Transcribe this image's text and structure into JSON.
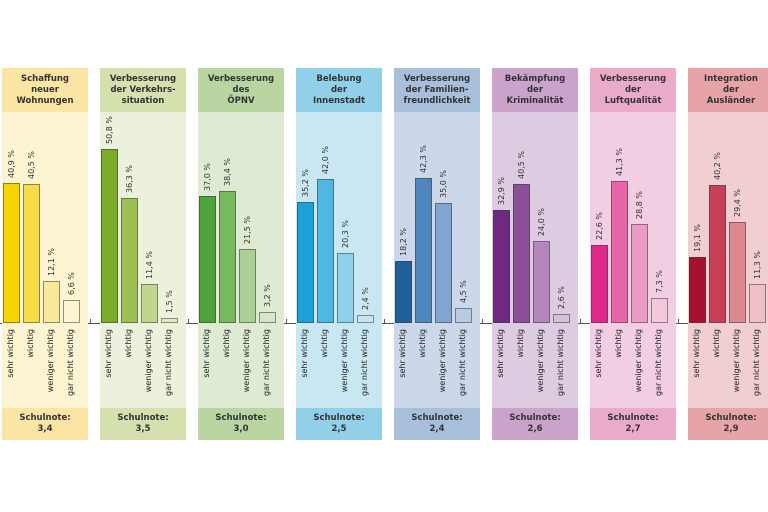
{
  "chart_data": {
    "type": "bar",
    "categories": [
      "sehr wichtig",
      "wichtig",
      "weniger wichtig",
      "gar nicht wichtig"
    ],
    "ylim": [
      0,
      55
    ],
    "grade_label": "Schulnote:",
    "panels": [
      {
        "title": "Schaffung\nneuer\nWohnungen",
        "values": [
          40.9,
          40.5,
          12.1,
          6.6
        ],
        "labels": [
          "40,9 %",
          "40,5 %",
          "12,1 %",
          "6,6 %"
        ],
        "grade": "3,4",
        "colors": {
          "header": "#fae5a4",
          "bg": "#fdf4d2",
          "bars": [
            "#f5d400",
            "#f7dc4a",
            "#f9e89a",
            "#fdf5d2"
          ]
        }
      },
      {
        "title": "Verbesserung\nder Verkehrs-\nsituation",
        "values": [
          50.8,
          36.3,
          11.4,
          1.5
        ],
        "labels": [
          "50,8 %",
          "36,3 %",
          "11,4 %",
          "1,5 %"
        ],
        "grade": "3,5",
        "colors": {
          "header": "#d4e0ae",
          "bg": "#ebf1da",
          "bars": [
            "#7bab2a",
            "#9ebf52",
            "#c1d68d",
            "#e0eac3"
          ]
        }
      },
      {
        "title": "Verbesserung\ndes\nÖPNV",
        "values": [
          37.0,
          38.4,
          21.5,
          3.2
        ],
        "labels": [
          "37,0 %",
          "38,4 %",
          "21,5 %",
          "3,2 %"
        ],
        "grade": "3,0",
        "colors": {
          "header": "#b9d5a2",
          "bg": "#deead2",
          "bars": [
            "#4ea33a",
            "#78b860",
            "#a9cf92",
            "#d4e6c8"
          ]
        }
      },
      {
        "title": "Belebung\nder\nInnenstadt",
        "values": [
          35.2,
          42.0,
          20.3,
          2.4
        ],
        "labels": [
          "35,2 %",
          "42,0 %",
          "20,3 %",
          "2,4 %"
        ],
        "grade": "2,5",
        "colors": {
          "header": "#92d0e9",
          "bg": "#c9e7f3",
          "bars": [
            "#1aa2d8",
            "#4fb8e2",
            "#8fd0ec",
            "#c4e6f4"
          ]
        }
      },
      {
        "title": "Verbesserung\nder Familien-\nfreundlichkeit",
        "values": [
          18.2,
          42.3,
          35.0,
          4.5
        ],
        "labels": [
          "18,2 %",
          "42,3 %",
          "35,0 %",
          "4,5 %"
        ],
        "grade": "2,4",
        "colors": {
          "header": "#a8bfdc",
          "bg": "#ccd8e9",
          "bars": [
            "#1f5f9a",
            "#4f86c0",
            "#7fa5d0",
            "#b8cbe2"
          ]
        }
      },
      {
        "title": "Bekämpfung\nder\nKriminalität",
        "values": [
          32.9,
          40.5,
          24.0,
          2.6
        ],
        "labels": [
          "32,9 %",
          "40,5 %",
          "24,0 %",
          "2,6 %"
        ],
        "grade": "2,6",
        "colors": {
          "header": "#c9a3c9",
          "bg": "#ddcce1",
          "bars": [
            "#6e2a80",
            "#8c4e98",
            "#b487bc",
            "#d6bfd9"
          ]
        }
      },
      {
        "title": "Verbesserung\nder\nLuftqualität",
        "values": [
          22.6,
          41.3,
          28.8,
          7.3
        ],
        "labels": [
          "22,6 %",
          "41,3 %",
          "28,8 %",
          "7,3 %"
        ],
        "grade": "2,7",
        "colors": {
          "header": "#eaabca",
          "bg": "#f1cee1",
          "bars": [
            "#e0288a",
            "#e765a8",
            "#ec9cc4",
            "#f3c8dc"
          ]
        }
      },
      {
        "title": "Integration\nder\nAusländer",
        "values": [
          19.1,
          40.2,
          29.4,
          11.3
        ],
        "labels": [
          "19,1 %",
          "40,2 %",
          "29,4 %",
          "11,3 %"
        ],
        "grade": "2,9",
        "colors": {
          "header": "#e7a4a8",
          "bg": "#f0ced1",
          "bars": [
            "#a8102f",
            "#c84058",
            "#de8890",
            "#efc1c4"
          ]
        }
      }
    ]
  }
}
